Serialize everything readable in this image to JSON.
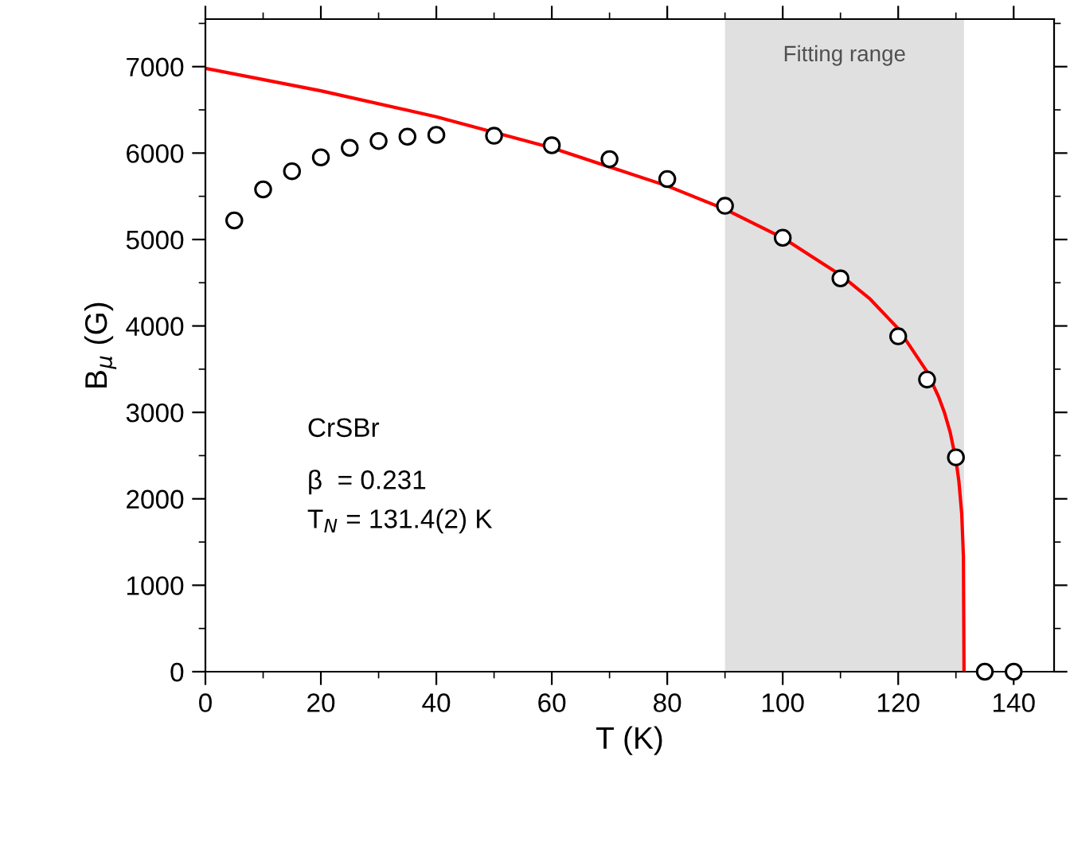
{
  "chart_data": {
    "type": "scatter",
    "xlabel": "T (K)",
    "ylabel": "B$_{μ}$ (G)",
    "xlim": [
      0,
      147
    ],
    "ylim": [
      0,
      7550
    ],
    "xticks": [
      0,
      20,
      40,
      60,
      80,
      100,
      120,
      140
    ],
    "yticks": [
      0,
      1000,
      2000,
      3000,
      4000,
      5000,
      6000,
      7000
    ],
    "x": [
      5,
      10,
      15,
      20,
      25,
      30,
      35,
      40,
      50,
      60,
      70,
      80,
      90,
      100,
      110,
      120,
      125,
      130,
      135,
      140
    ],
    "series": [
      {
        "color": "#000000",
        "marker": "circle",
        "values": [
          5220,
          5580,
          5790,
          5950,
          6060,
          6140,
          6190,
          6210,
          6200,
          6090,
          5930,
          5700,
          5390,
          5020,
          4550,
          3880,
          3380,
          2480,
          0,
          0
        ]
      },
      {
        "type": "line",
        "color": "#ff0000",
        "marker": "none",
        "line_style": "solid",
        "x": [
          0,
          20,
          40,
          60,
          80,
          90,
          100,
          110,
          115,
          120,
          125,
          127,
          128,
          129,
          130,
          130.5,
          131,
          131.3,
          131.4
        ],
        "values": [
          6980,
          6720,
          6420,
          6060,
          5620,
          5350,
          5020,
          4590,
          4320,
          3970,
          3470,
          3180,
          3000,
          2770,
          2450,
          2210,
          1830,
          1330,
          0
        ]
      }
    ],
    "bands": [
      {
        "axis": "x",
        "from": 90,
        "to": 131.4,
        "label": "Fitting range",
        "color": "#e0e0e0"
      }
    ],
    "annotations": [
      "CrSBr",
      "β  = 0.231",
      "T$_{N}$ = 131.4(2) K"
    ],
    "grid": false,
    "legend": false
  }
}
